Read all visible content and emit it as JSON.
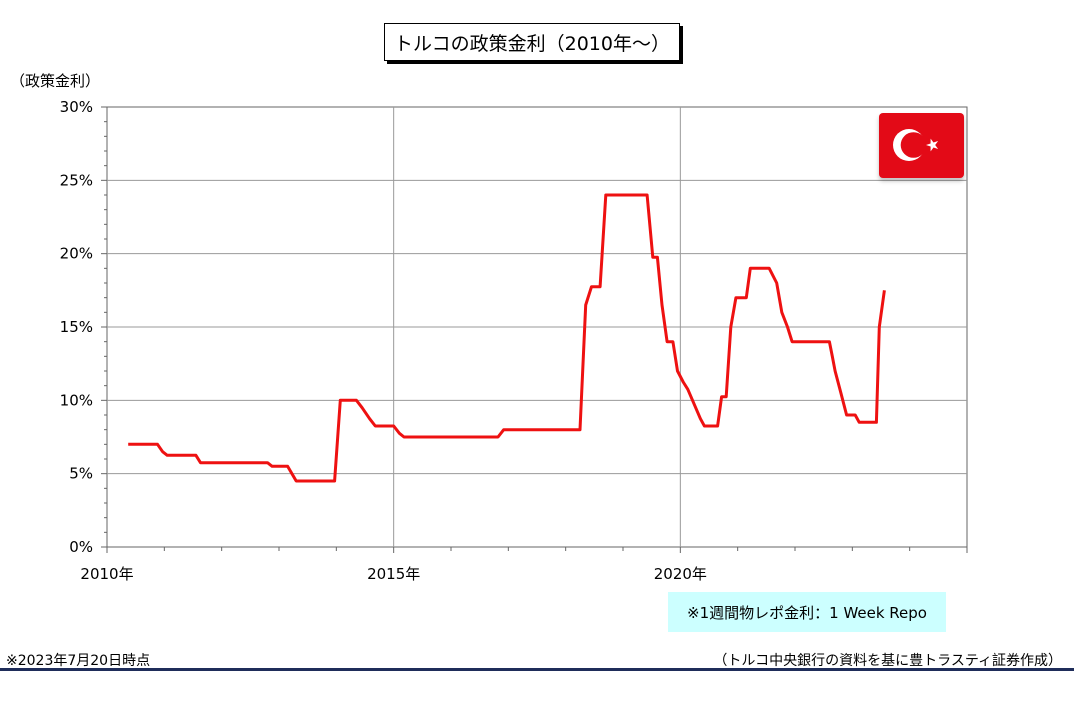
{
  "title": "トルコの政策金利（2010年〜）",
  "note": "※1週間物レポ金利：1 Week Repo",
  "footer": {
    "left": "※2023年7月20日時点",
    "right": "（トルコ中央銀行の資料を基に豊トラスティ証券作成）"
  },
  "flag": {
    "country": "Turkey",
    "colors": {
      "red": "#e30a17",
      "white": "#ffffff"
    },
    "icon": "turkish-flag-icon"
  },
  "colors": {
    "line": "#ee1111",
    "grid": "#999999"
  },
  "chart_data": {
    "type": "line",
    "title": "トルコの政策金利（2010年〜）",
    "ylabel": "（政策金利）",
    "xlabel": "",
    "xlim": [
      2010,
      2025
    ],
    "ylim": [
      0,
      30
    ],
    "x_ticks": [
      {
        "value": 2010,
        "label": "2010年"
      },
      {
        "value": 2015,
        "label": "2015年"
      },
      {
        "value": 2020,
        "label": "2020年"
      }
    ],
    "y_ticks": [
      {
        "value": 0,
        "label": "0%"
      },
      {
        "value": 5,
        "label": "5%"
      },
      {
        "value": 10,
        "label": "10%"
      },
      {
        "value": 15,
        "label": "15%"
      },
      {
        "value": 20,
        "label": "20%"
      },
      {
        "value": 25,
        "label": "25%"
      },
      {
        "value": 30,
        "label": "30%"
      }
    ],
    "grid": true,
    "legend": "none",
    "series": [
      {
        "points": [
          [
            2010.37,
            7.0
          ],
          [
            2010.62,
            7.0
          ],
          [
            2010.88,
            7.0
          ],
          [
            2010.97,
            6.5
          ],
          [
            2011.05,
            6.25
          ],
          [
            2011.2,
            6.25
          ],
          [
            2011.4,
            6.25
          ],
          [
            2011.55,
            6.25
          ],
          [
            2011.63,
            5.75
          ],
          [
            2012.0,
            5.75
          ],
          [
            2012.8,
            5.75
          ],
          [
            2012.88,
            5.5
          ],
          [
            2013.15,
            5.5
          ],
          [
            2013.3,
            4.5
          ],
          [
            2013.6,
            4.5
          ],
          [
            2013.97,
            4.5
          ],
          [
            2014.07,
            10.0
          ],
          [
            2014.35,
            10.0
          ],
          [
            2014.45,
            9.5
          ],
          [
            2014.58,
            8.75
          ],
          [
            2014.68,
            8.25
          ],
          [
            2015.0,
            8.25
          ],
          [
            2015.1,
            7.75
          ],
          [
            2015.18,
            7.5
          ],
          [
            2016.0,
            7.5
          ],
          [
            2016.82,
            7.5
          ],
          [
            2016.92,
            8.0
          ],
          [
            2017.5,
            8.0
          ],
          [
            2018.25,
            8.0
          ],
          [
            2018.35,
            16.5
          ],
          [
            2018.45,
            17.75
          ],
          [
            2018.6,
            17.75
          ],
          [
            2018.7,
            24.0
          ],
          [
            2019.3,
            24.0
          ],
          [
            2019.42,
            24.0
          ],
          [
            2019.52,
            19.75
          ],
          [
            2019.6,
            19.75
          ],
          [
            2019.68,
            16.5
          ],
          [
            2019.77,
            14.0
          ],
          [
            2019.87,
            14.0
          ],
          [
            2019.95,
            12.0
          ],
          [
            2020.05,
            11.25
          ],
          [
            2020.13,
            10.75
          ],
          [
            2020.35,
            8.75
          ],
          [
            2020.42,
            8.25
          ],
          [
            2020.65,
            8.25
          ],
          [
            2020.72,
            10.25
          ],
          [
            2020.8,
            10.25
          ],
          [
            2020.88,
            15.0
          ],
          [
            2020.97,
            17.0
          ],
          [
            2021.15,
            17.0
          ],
          [
            2021.22,
            19.0
          ],
          [
            2021.55,
            19.0
          ],
          [
            2021.68,
            18.0
          ],
          [
            2021.77,
            16.0
          ],
          [
            2021.87,
            15.0
          ],
          [
            2021.95,
            14.0
          ],
          [
            2022.25,
            14.0
          ],
          [
            2022.6,
            14.0
          ],
          [
            2022.65,
            13.0
          ],
          [
            2022.7,
            12.0
          ],
          [
            2022.8,
            10.5
          ],
          [
            2022.9,
            9.0
          ],
          [
            2023.05,
            9.0
          ],
          [
            2023.12,
            8.5
          ],
          [
            2023.42,
            8.5
          ],
          [
            2023.47,
            15.0
          ],
          [
            2023.56,
            17.5
          ]
        ]
      }
    ]
  }
}
